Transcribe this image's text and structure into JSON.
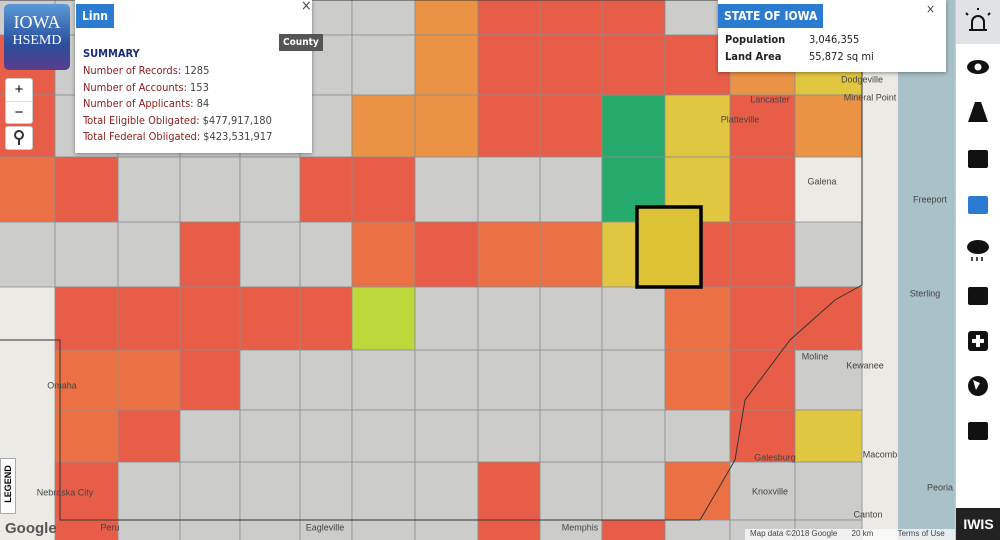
{
  "logo": {
    "line1": "IOWA",
    "line2": "HSEMD"
  },
  "zoom": {
    "in": "+",
    "out": "−"
  },
  "county_popup": {
    "title": "Linn",
    "tag": "County",
    "close": "×",
    "section": "SUMMARY",
    "rows": [
      {
        "label": "Number of Records:",
        "value": "1285"
      },
      {
        "label": "Number of Accounts:",
        "value": "153"
      },
      {
        "label": "Number of Applicants:",
        "value": "84"
      },
      {
        "label": "Total Eligible Obligated:",
        "value": "$477,917,180"
      },
      {
        "label": "Total Federal Obligated:",
        "value": "$423,531,917"
      }
    ]
  },
  "state_panel": {
    "title": "STATE OF IOWA",
    "close": "×",
    "rows": [
      {
        "label": "Population",
        "value": "3,046,355"
      },
      {
        "label": "Land Area",
        "value": "55,872 sq mi"
      }
    ]
  },
  "map_labels": [
    "Omaha",
    "Moline",
    "Galena",
    "Freeport",
    "Sterling",
    "Kewanee",
    "Galesburg",
    "Knoxville",
    "Canton",
    "Peoria",
    "Nebraska City",
    "Peru",
    "Eagleville",
    "Memphis",
    "Platteville",
    "Lancaster",
    "Mineral Point",
    "Dodgeville",
    "Macomb"
  ],
  "legend_tab": "LEGEND",
  "google": "Google",
  "attribution": {
    "data": "Map data ©2018 Google",
    "scale": "20 km",
    "terms": "Terms of Use"
  },
  "brand": "IWIS"
}
